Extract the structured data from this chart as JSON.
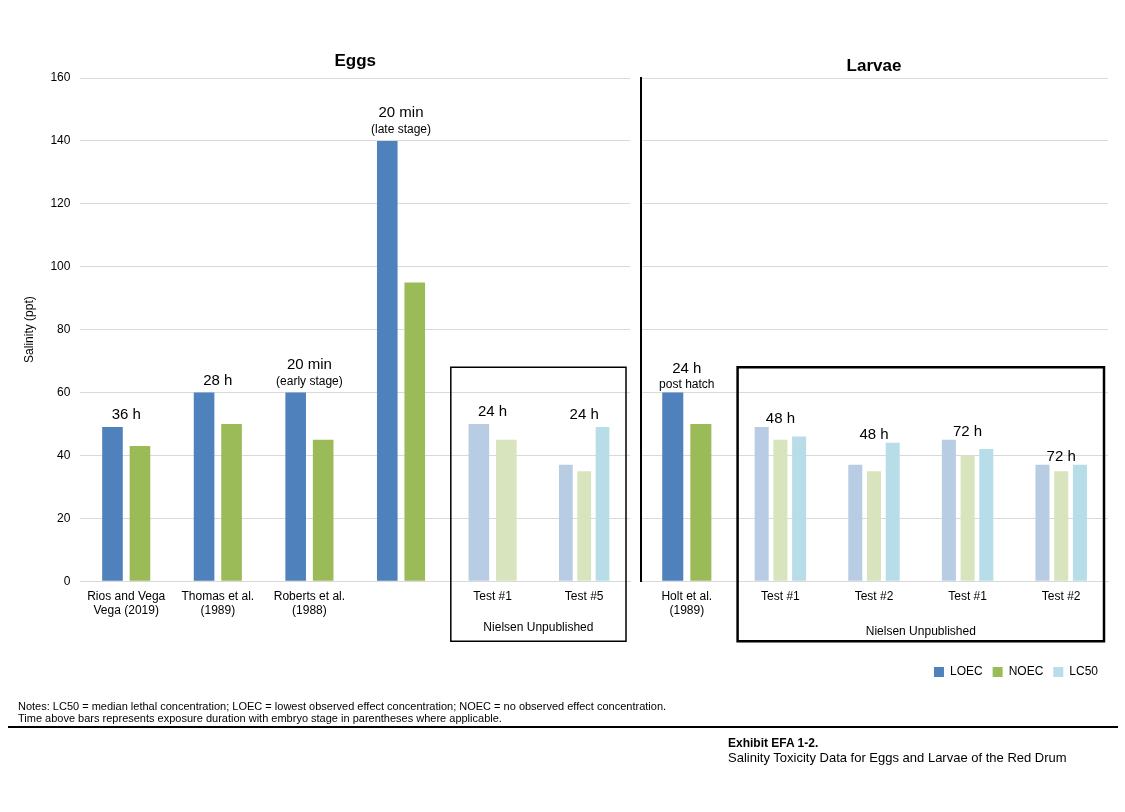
{
  "chart_data": [
    {
      "type": "bar",
      "title": "Eggs",
      "ylabel": "Salinity (ppt)",
      "categories": [
        "Rios and Vega\nVega (2019)",
        "Thomas et al.\n(1989)",
        "Roberts et al.\n(1988)",
        null,
        "Test #1",
        "Test #5"
      ],
      "series": [
        {
          "color": "#4f81bd",
          "colors": [
            "#4f81bd",
            "#4f81bd",
            "#4f81bd",
            "#4f81bd",
            "#b8cce4",
            "#b8cce4"
          ],
          "values": [
            49,
            60,
            60,
            140,
            50,
            37
          ]
        },
        {
          "color": "#9bbb59",
          "colors": [
            "#9bbb59",
            "#9bbb59",
            "#9bbb59",
            "#9bbb59",
            "#d7e4bd",
            "#d7e4bd"
          ],
          "values": [
            43,
            50,
            45,
            95,
            45,
            35
          ]
        },
        {
          "color": "#b7dde8",
          "colors": [
            "#b7dde8",
            "#b7dde8",
            "#b7dde8",
            "#b7dde8",
            "#b7dde8",
            "#b7dde8"
          ],
          "values": [
            null,
            null,
            null,
            null,
            null,
            49
          ]
        }
      ],
      "ylim": [
        0,
        160
      ],
      "yticks": [
        0,
        20,
        40,
        60,
        80,
        100,
        120,
        140,
        160
      ],
      "grid": "y",
      "annotations": [
        "Nielsen Unpublished",
        "36 h",
        "28 h",
        "20 min\n(early stage)",
        "20 min\n(late stage)",
        "24 h",
        "24 h"
      ]
    },
    {
      "type": "bar",
      "title": "Larvae",
      "categories": [
        "Holt et al.\n(1989)",
        "Test #1",
        "Test #2",
        "Test #1",
        "Test #2"
      ],
      "series": [
        {
          "name": "LOEC",
          "color": "#4f81bd",
          "colors": [
            "#4f81bd",
            "#b8cce4",
            "#b8cce4",
            "#b8cce4",
            "#b8cce4"
          ],
          "values": [
            60,
            49,
            37,
            45,
            37
          ]
        },
        {
          "name": "NOEC",
          "color": "#9bbb59",
          "colors": [
            "#9bbb59",
            "#d7e4bd",
            "#d7e4bd",
            "#d7e4bd",
            "#d7e4bd"
          ],
          "values": [
            50,
            45,
            35,
            40,
            35
          ]
        },
        {
          "name": "LC50",
          "color": "#b7dde8",
          "colors": [
            "#b7dde8",
            "#b7dde8",
            "#b7dde8",
            "#b7dde8",
            "#b7dde8"
          ],
          "values": [
            null,
            46,
            44,
            42,
            37
          ]
        }
      ],
      "ylim": [
        0,
        160
      ],
      "yticks": [
        0,
        20,
        40,
        60,
        80,
        100,
        120,
        140,
        160
      ],
      "grid": "y",
      "tick_labels": "x",
      "legend": "bottom right",
      "annotations": [
        "Nielsen Unpublished",
        "24 h\npost hatch",
        "48 h",
        "48 h",
        "72 h",
        "72 h",
        "Notes: LC50 = median lethal concentration; LOEC = lowest observed effect concentration; NOEC = no observed effect concentration.",
        "Time above bars represents exposure duration with embryo stage in parentheses where applicable.",
        "Exhibit EFA 1-2.",
        "Salinity Toxicity Data for Eggs and Larvae of the Red Drum"
      ]
    }
  ]
}
